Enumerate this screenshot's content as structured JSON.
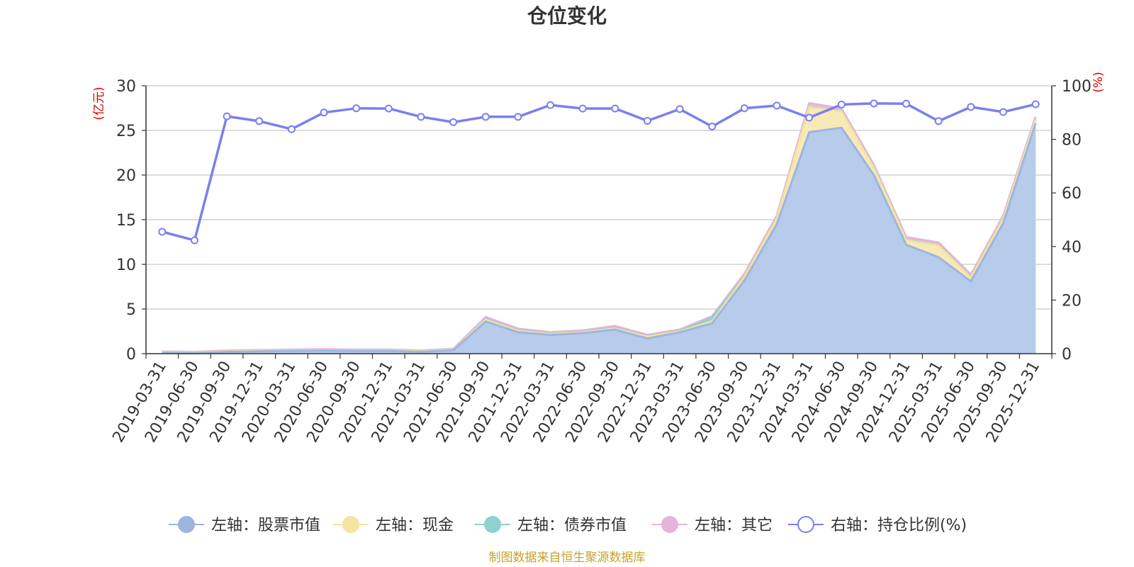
{
  "chart_data": {
    "type": "area",
    "title": "仓位变化",
    "left_unit": "(亿元)",
    "right_unit": "(%)",
    "left_ylim": [
      0,
      30
    ],
    "left_ticks": [
      "0",
      "5",
      "10",
      "15",
      "20",
      "25",
      "30"
    ],
    "right_ylim": [
      0,
      100
    ],
    "right_ticks": [
      "0",
      "20",
      "40",
      "60",
      "80",
      "100"
    ],
    "categories": [
      "2019-03-31",
      "2019-06-30",
      "2019-09-30",
      "2019-12-31",
      "2020-03-31",
      "2020-06-30",
      "2020-09-30",
      "2020-12-31",
      "2021-03-31",
      "2021-06-30",
      "2021-09-30",
      "2021-12-31",
      "2022-03-31",
      "2022-06-30",
      "2022-09-30",
      "2022-12-31",
      "2023-03-31",
      "2023-06-30",
      "2023-09-30",
      "2023-12-31",
      "2024-03-31",
      "2024-06-30",
      "2024-09-30",
      "2024-12-31",
      "2025-03-31",
      "2025-06-30",
      "2025-09-30",
      "2025-12-31"
    ],
    "stacked_series": [
      {
        "name": "左轴：股票市值",
        "color": "#9db6e0",
        "fill": "#b7cbea",
        "values": [
          0.1,
          0.05,
          0.2,
          0.25,
          0.3,
          0.35,
          0.3,
          0.3,
          0.2,
          0.4,
          3.6,
          2.4,
          2.1,
          2.3,
          2.7,
          1.7,
          2.4,
          3.4,
          8.2,
          14.5,
          24.8,
          25.3,
          20.0,
          12.2,
          10.8,
          8.1,
          14.6,
          25.8
        ]
      },
      {
        "name": "左轴：现金",
        "color": "#f5e3a0",
        "fill": "#f8eab7",
        "values": [
          0.05,
          0.05,
          0.05,
          0.05,
          0.05,
          0.05,
          0.05,
          0.05,
          0.05,
          0.05,
          0.2,
          0.15,
          0.1,
          0.1,
          0.1,
          0.2,
          0.1,
          0.2,
          0.4,
          0.6,
          2.8,
          1.8,
          0.8,
          0.5,
          1.3,
          0.4,
          0.5,
          0.4
        ]
      },
      {
        "name": "左轴：债券市值",
        "color": "#8fd0d0",
        "fill": "#a6dada",
        "values": [
          0,
          0,
          0,
          0,
          0,
          0,
          0,
          0,
          0,
          0,
          0.1,
          0.05,
          0.05,
          0.05,
          0.05,
          0.05,
          0.05,
          0.4,
          0.05,
          0.05,
          0.05,
          0.05,
          0.05,
          0.05,
          0.05,
          0.05,
          0.05,
          0.05
        ]
      },
      {
        "name": "左轴：其它",
        "color": "#e6b3d9",
        "fill": "#edc4e3",
        "values": [
          0.1,
          0.1,
          0.1,
          0.1,
          0.1,
          0.1,
          0.1,
          0.1,
          0.1,
          0.1,
          0.2,
          0.2,
          0.15,
          0.15,
          0.25,
          0.15,
          0.15,
          0.2,
          0.3,
          0.3,
          0.4,
          0.3,
          0.3,
          0.3,
          0.3,
          0.3,
          0.3,
          0.3
        ]
      }
    ],
    "line_series": {
      "name": "右轴：持仓比例(%)",
      "color": "#7b7ff0",
      "values": [
        45.5,
        42.3,
        88.6,
        86.8,
        83.8,
        90.0,
        91.6,
        91.5,
        88.4,
        86.4,
        88.4,
        88.4,
        92.8,
        91.5,
        91.5,
        86.9,
        91.3,
        84.8,
        91.6,
        92.6,
        88.1,
        93.0,
        93.4,
        93.3,
        86.8,
        92.1,
        90.2,
        93.1
      ]
    },
    "legend_position": "bottom",
    "source": "制图数据来自恒生聚源数据库"
  }
}
